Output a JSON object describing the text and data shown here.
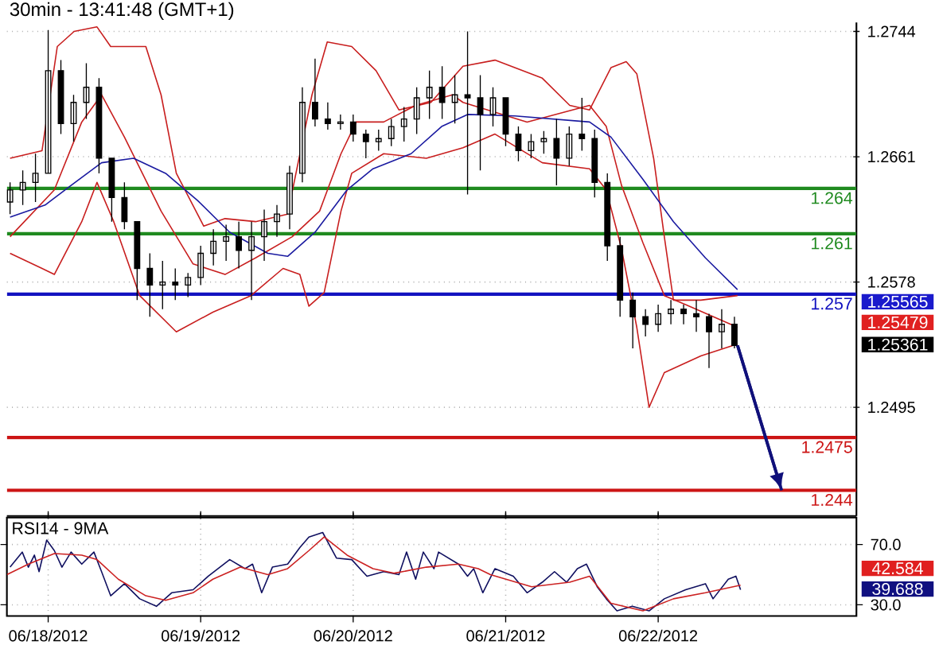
{
  "chart_data": [
    {
      "type": "candlestick",
      "title": "30min - 13:41:48 (GMT+1)",
      "color": "#000000",
      "x": [
        "2012-06-17T18:00",
        "2012-06-17T20:00",
        "2012-06-17T22:00",
        "2012-06-18T00:00",
        "2012-06-18T02:00",
        "2012-06-18T04:00",
        "2012-06-18T06:00",
        "2012-06-18T08:00",
        "2012-06-18T10:00",
        "2012-06-18T12:00",
        "2012-06-18T14:00",
        "2012-06-18T16:00",
        "2012-06-18T18:00",
        "2012-06-18T20:00",
        "2012-06-18T22:00",
        "2012-06-19T00:00",
        "2012-06-19T02:00",
        "2012-06-19T04:00",
        "2012-06-19T06:00",
        "2012-06-19T08:00",
        "2012-06-19T10:00",
        "2012-06-19T12:00",
        "2012-06-19T14:00",
        "2012-06-19T16:00",
        "2012-06-19T18:00",
        "2012-06-19T20:00",
        "2012-06-19T22:00",
        "2012-06-20T00:00",
        "2012-06-20T02:00",
        "2012-06-20T04:00",
        "2012-06-20T06:00",
        "2012-06-20T08:00",
        "2012-06-20T10:00",
        "2012-06-20T12:00",
        "2012-06-20T14:00",
        "2012-06-20T16:00",
        "2012-06-20T18:00",
        "2012-06-20T20:00",
        "2012-06-20T22:00",
        "2012-06-21T00:00",
        "2012-06-21T02:00",
        "2012-06-21T04:00",
        "2012-06-21T06:00",
        "2012-06-21T08:00",
        "2012-06-21T10:00",
        "2012-06-21T12:00",
        "2012-06-21T14:00",
        "2012-06-21T16:00",
        "2012-06-21T18:00",
        "2012-06-21T20:00",
        "2012-06-21T22:00",
        "2012-06-22T00:00",
        "2012-06-22T02:00",
        "2012-06-22T04:00",
        "2012-06-22T06:00",
        "2012-06-22T08:00",
        "2012-06-22T10:00",
        "2012-06-22T12:00"
      ],
      "ohlc": [
        [
          1.2631,
          1.2644,
          1.2623,
          1.2639
        ],
        [
          1.2639,
          1.2652,
          1.2629,
          1.2644
        ],
        [
          1.2644,
          1.2663,
          1.2631,
          1.265
        ],
        [
          1.265,
          1.2745,
          1.265,
          1.2718
        ],
        [
          1.2718,
          1.2725,
          1.2676,
          1.2683
        ],
        [
          1.2683,
          1.2702,
          1.2671,
          1.2697
        ],
        [
          1.2697,
          1.2723,
          1.2686,
          1.2707
        ],
        [
          1.2707,
          1.2713,
          1.265,
          1.266
        ],
        [
          1.266,
          1.266,
          1.2618,
          1.2634
        ],
        [
          1.2634,
          1.2644,
          1.2613,
          1.2618
        ],
        [
          1.2618,
          1.2618,
          1.2566,
          1.2587
        ],
        [
          1.2587,
          1.2597,
          1.2555,
          1.2576
        ],
        [
          1.2576,
          1.2592,
          1.256,
          1.2578
        ],
        [
          1.2578,
          1.2587,
          1.2566,
          1.2576
        ],
        [
          1.2576,
          1.2584,
          1.2568,
          1.2581
        ],
        [
          1.2581,
          1.2602,
          1.2576,
          1.2597
        ],
        [
          1.2597,
          1.2613,
          1.2589,
          1.2605
        ],
        [
          1.2605,
          1.2616,
          1.2592,
          1.2608
        ],
        [
          1.2608,
          1.2618,
          1.2587,
          1.2599
        ],
        [
          1.2599,
          1.2618,
          1.2566,
          1.2608
        ],
        [
          1.2608,
          1.2626,
          1.2592,
          1.2618
        ],
        [
          1.2618,
          1.2629,
          1.2608,
          1.2623
        ],
        [
          1.2623,
          1.2655,
          1.2613,
          1.265
        ],
        [
          1.265,
          1.2707,
          1.2644,
          1.2697
        ],
        [
          1.2697,
          1.2726,
          1.2681,
          1.2686
        ],
        [
          1.2686,
          1.2697,
          1.2679,
          1.2683
        ],
        [
          1.2683,
          1.2689,
          1.2679,
          1.2684
        ],
        [
          1.2684,
          1.2689,
          1.2671,
          1.2676
        ],
        [
          1.2676,
          1.2679,
          1.266,
          1.2671
        ],
        [
          1.2671,
          1.2679,
          1.2665,
          1.2673
        ],
        [
          1.2673,
          1.2686,
          1.2668,
          1.2681
        ],
        [
          1.2681,
          1.2694,
          1.2671,
          1.2686
        ],
        [
          1.2686,
          1.2707,
          1.2676,
          1.27
        ],
        [
          1.27,
          1.2718,
          1.2686,
          1.2707
        ],
        [
          1.2707,
          1.2721,
          1.2686,
          1.2697
        ],
        [
          1.2697,
          1.2715,
          1.2683,
          1.2702
        ],
        [
          1.2702,
          1.2744,
          1.2636,
          1.27
        ],
        [
          1.27,
          1.2715,
          1.2652,
          1.2689
        ],
        [
          1.2689,
          1.2707,
          1.2681,
          1.27
        ],
        [
          1.27,
          1.27,
          1.2668,
          1.2676
        ],
        [
          1.2676,
          1.2681,
          1.2658,
          1.2665
        ],
        [
          1.2665,
          1.2676,
          1.266,
          1.2671
        ],
        [
          1.2671,
          1.2678,
          1.2663,
          1.2673
        ],
        [
          1.2673,
          1.2686,
          1.2642,
          1.266
        ],
        [
          1.266,
          1.2681,
          1.2655,
          1.2676
        ],
        [
          1.2676,
          1.27,
          1.2665,
          1.2673
        ],
        [
          1.2673,
          1.2679,
          1.2634,
          1.2644
        ],
        [
          1.2644,
          1.265,
          1.2592,
          1.2602
        ],
        [
          1.2602,
          1.2608,
          1.2555,
          1.2566
        ],
        [
          1.2566,
          1.2571,
          1.2534,
          1.2555
        ],
        [
          1.2555,
          1.256,
          1.2542,
          1.255
        ],
        [
          1.255,
          1.2563,
          1.2545,
          1.2557
        ],
        [
          1.2557,
          1.2566,
          1.255,
          1.256
        ],
        [
          1.256,
          1.2563,
          1.255,
          1.2557
        ],
        [
          1.2557,
          1.2566,
          1.2545,
          1.2555
        ],
        [
          1.2555,
          1.2557,
          1.2521,
          1.2545
        ],
        [
          1.2545,
          1.256,
          1.2534,
          1.255
        ],
        [
          1.255,
          1.2555,
          1.2534,
          1.2536
        ]
      ],
      "series": [
        {
          "type": "line",
          "color": "#c81e1e",
          "x": [
            "2012-06-17T18:00",
            "2012-06-17T23:02",
            "2012-06-18T01:26",
            "2012-06-18T04:05",
            "2012-06-18T07:41",
            "2012-06-18T09:50",
            "2012-06-18T15:22",
            "2012-06-18T17:46",
            "2012-06-18T20:10",
            "2012-06-19T00:29",
            "2012-06-19T03:50",
            "2012-06-19T08:38",
            "2012-06-19T13:41",
            "2012-06-19T17:31",
            "2012-06-19T19:55",
            "2012-06-19T23:46",
            "2012-06-20T03:36",
            "2012-06-20T07:12",
            "2012-06-20T12:14",
            "2012-06-20T17:17",
            "2012-06-20T22:19",
            "2012-06-21T05:46",
            "2012-06-21T10:05",
            "2012-06-21T13:12",
            "2012-06-21T16:34",
            "2012-06-21T18:58",
            "2012-06-21T20:38",
            "2012-06-21T23:17",
            "2012-06-22T00:58",
            "2012-06-22T02:24",
            "2012-06-22T06:43",
            "2012-06-22T12:29"
          ],
          "values": [
            1.266,
            1.2665,
            1.2734,
            1.2744,
            1.2747,
            1.2734,
            1.2734,
            1.2702,
            1.265,
            1.2615,
            1.262,
            1.2618,
            1.2623,
            1.2702,
            1.2737,
            1.2734,
            1.2718,
            1.2692,
            1.2697,
            1.2721,
            1.2725,
            1.2713,
            1.2695,
            1.2692,
            1.272,
            1.2724,
            1.2716,
            1.266,
            1.2608,
            1.2566,
            1.2566,
            1.2569
          ]
        },
        {
          "type": "line",
          "color": "#c81e1e",
          "x": [
            "2012-06-17T18:00",
            "2012-06-18T00:58",
            "2012-06-18T05:17",
            "2012-06-18T08:24",
            "2012-06-18T12:00",
            "2012-06-18T17:46",
            "2012-06-18T22:48",
            "2012-06-19T03:50",
            "2012-06-19T08:38",
            "2012-06-19T14:24",
            "2012-06-19T18:43",
            "2012-06-19T22:05",
            "2012-06-20T00:29",
            "2012-06-20T04:48",
            "2012-06-20T09:50",
            "2012-06-20T15:36",
            "2012-06-20T17:17",
            "2012-06-21T03:22",
            "2012-06-21T13:12",
            "2012-06-21T15:50",
            "2012-06-21T18:14",
            "2012-06-21T21:36",
            "2012-06-22T00:58",
            "2012-06-22T04:19",
            "2012-06-22T12:29"
          ],
          "values": [
            1.2608,
            1.2639,
            1.2684,
            1.2702,
            1.2674,
            1.2625,
            1.259,
            1.2583,
            1.2594,
            1.2608,
            1.2625,
            1.2663,
            1.2684,
            1.2684,
            1.2695,
            1.2702,
            1.2697,
            1.2684,
            1.2695,
            1.2681,
            1.2642,
            1.2604,
            1.2569,
            1.2563,
            1.2548
          ]
        },
        {
          "type": "line",
          "color": "#c81e1e",
          "x": [
            "2012-06-17T18:00",
            "2012-06-17T23:02",
            "2012-06-18T00:58",
            "2012-06-18T05:17",
            "2012-06-18T07:41",
            "2012-06-18T10:19",
            "2012-06-18T14:24",
            "2012-06-18T20:10",
            "2012-06-19T01:55",
            "2012-06-19T07:55",
            "2012-06-19T12:58",
            "2012-06-19T15:36",
            "2012-06-19T17:02",
            "2012-06-19T19:26",
            "2012-06-19T22:05",
            "2012-06-19T23:46",
            "2012-06-20T04:48",
            "2012-06-20T11:31",
            "2012-06-20T17:17",
            "2012-06-20T22:19",
            "2012-06-21T05:46",
            "2012-06-21T13:12",
            "2012-06-21T15:50",
            "2012-06-21T18:14",
            "2012-06-21T20:38",
            "2012-06-21T22:34",
            "2012-06-22T00:58",
            "2012-06-22T06:43",
            "2012-06-22T12:29"
          ],
          "values": [
            1.2597,
            1.2587,
            1.2583,
            1.2618,
            1.2644,
            1.2618,
            1.2569,
            1.2545,
            1.2558,
            1.2569,
            1.2587,
            1.2583,
            1.2562,
            1.2571,
            1.2625,
            1.265,
            1.2663,
            1.266,
            1.2667,
            1.2676,
            1.2657,
            1.2653,
            1.2639,
            1.26,
            1.2548,
            1.2495,
            1.2518,
            1.2529,
            1.2537
          ]
        },
        {
          "type": "line",
          "color": "#1a1aa0",
          "x": [
            "2012-06-17T18:00",
            "2012-06-17T23:31",
            "2012-06-18T03:36",
            "2012-06-18T08:24",
            "2012-06-18T13:26",
            "2012-06-18T18:29",
            "2012-06-18T23:31",
            "2012-06-19T04:34",
            "2012-06-19T10:34",
            "2012-06-19T13:41",
            "2012-06-19T18:00",
            "2012-06-19T23:02",
            "2012-06-20T03:07",
            "2012-06-20T09:07",
            "2012-06-20T13:55",
            "2012-06-20T18:00",
            "2012-06-21T01:26",
            "2012-06-21T13:12",
            "2012-06-21T16:34",
            "2012-06-21T21:36",
            "2012-06-22T02:24",
            "2012-06-22T07:26",
            "2012-06-22T12:29"
          ],
          "values": [
            1.2621,
            1.2629,
            1.2642,
            1.2657,
            1.266,
            1.265,
            1.2632,
            1.2611,
            1.2597,
            1.2595,
            1.2611,
            1.2639,
            1.2653,
            1.2663,
            1.2681,
            1.2689,
            1.2688,
            1.2684,
            1.2674,
            1.2646,
            1.2618,
            1.2594,
            1.2573
          ]
        },
        {
          "type": "line",
          "color": "#10107a",
          "x": [
            "2012-06-22T12:29",
            "2012-06-22T19:26"
          ],
          "values": [
            1.2536,
            1.244
          ]
        }
      ],
      "ref_lines": [
        {
          "axis": "y",
          "value": 1.264,
          "label": "1.264",
          "color": "#1f8a1f"
        },
        {
          "axis": "y",
          "value": 1.261,
          "label": "1.261",
          "color": "#1f8a1f"
        },
        {
          "axis": "y",
          "value": 1.257,
          "label": "1.257",
          "color": "#1212c0"
        },
        {
          "axis": "y",
          "value": 1.2475,
          "label": "1.2475",
          "color": "#cc1414"
        },
        {
          "axis": "y",
          "value": 1.244,
          "label": "1.244",
          "color": "#cc1414"
        }
      ],
      "annotations": [
        "1.25565",
        "1.25479",
        "1.25361"
      ],
      "xlim": [
        "2012-06-17T17:30",
        "2012-06-23T07:12"
      ],
      "ylim": [
        1.2423,
        1.275
      ],
      "yticks": [
        1.2744,
        1.2661,
        1.2578,
        1.2495
      ],
      "xticks": [
        {
          "value": "2012-06-18",
          "label": null
        },
        {
          "value": "2012-06-19",
          "label": null
        },
        {
          "value": "2012-06-20",
          "label": null
        },
        {
          "value": "2012-06-21",
          "label": null
        },
        {
          "value": "2012-06-22",
          "label": null
        }
      ],
      "grid": "y",
      "tick_labels": "y"
    },
    {
      "type": "line",
      "title": "RSI14 - 9MA",
      "series": [
        {
          "color": "#101060",
          "x": [
            "2012-06-17T18:00",
            "2012-06-17T19:55",
            "2012-06-17T20:53",
            "2012-06-17T21:50",
            "2012-06-17T22:34",
            "2012-06-17T23:46",
            "2012-06-18T00:58",
            "2012-06-18T02:10",
            "2012-06-18T03:36",
            "2012-06-18T05:17",
            "2012-06-18T07:12",
            "2012-06-18T08:24",
            "2012-06-18T09:50",
            "2012-06-18T12:00",
            "2012-06-18T14:24",
            "2012-06-18T17:02",
            "2012-06-18T19:26",
            "2012-06-18T22:48",
            "2012-06-19T01:12",
            "2012-06-19T04:34",
            "2012-06-19T06:58",
            "2012-06-19T08:10",
            "2012-06-19T09:36",
            "2012-06-19T11:17",
            "2012-06-19T13:41",
            "2012-06-19T15:36",
            "2012-06-19T17:02",
            "2012-06-19T19:12",
            "2012-06-19T21:22",
            "2012-06-19T23:46",
            "2012-06-20T02:10",
            "2012-06-20T04:48",
            "2012-06-20T07:12",
            "2012-06-20T08:24",
            "2012-06-20T09:50",
            "2012-06-20T11:02",
            "2012-06-20T12:43",
            "2012-06-20T13:26",
            "2012-06-20T16:34",
            "2012-06-20T18:00",
            "2012-06-20T18:58",
            "2012-06-20T20:24",
            "2012-06-20T22:19",
            "2012-06-21T01:12",
            "2012-06-21T03:22",
            "2012-06-21T05:46",
            "2012-06-21T07:41",
            "2012-06-21T09:36",
            "2012-06-21T11:17",
            "2012-06-21T12:43",
            "2012-06-21T14:24",
            "2012-06-21T15:50",
            "2012-06-21T17:31",
            "2012-06-21T19:55",
            "2012-06-21T22:34",
            "2012-06-22T00:58",
            "2012-06-22T04:19",
            "2012-06-22T07:26",
            "2012-06-22T08:38",
            "2012-06-22T11:02",
            "2012-06-22T12:14",
            "2012-06-22T12:58"
          ],
          "values": [
            55,
            65,
            55,
            63,
            52,
            73,
            66,
            55,
            65,
            57,
            65,
            52,
            36,
            44,
            34,
            29,
            38,
            40,
            49,
            60,
            54,
            57,
            38,
            55,
            57,
            68,
            75,
            78,
            61,
            60,
            49,
            52,
            50,
            65,
            47,
            65,
            54,
            65,
            57,
            49,
            54,
            38,
            54,
            49,
            38,
            45,
            52,
            45,
            54,
            57,
            42,
            34,
            26,
            29,
            26,
            34,
            40,
            44,
            34,
            47,
            49,
            40
          ]
        },
        {
          "color": "#cc2222",
          "x": [
            "2012-06-17T17:30",
            "2012-06-17T20:53",
            "2012-06-18T00:58",
            "2012-06-18T05:17",
            "2012-06-18T07:41",
            "2012-06-18T11:02",
            "2012-06-18T15:22",
            "2012-06-18T18:29",
            "2012-06-18T22:48",
            "2012-06-19T01:55",
            "2012-06-19T06:14",
            "2012-06-19T10:34",
            "2012-06-19T13:41",
            "2012-06-19T17:02",
            "2012-06-19T19:26",
            "2012-06-19T23:02",
            "2012-06-20T03:07",
            "2012-06-20T06:29",
            "2012-06-20T11:31",
            "2012-06-20T16:34",
            "2012-06-20T19:41",
            "2012-06-20T21:36",
            "2012-06-21T04:05",
            "2012-06-21T10:05",
            "2012-06-21T13:12",
            "2012-06-21T16:34",
            "2012-06-21T21:36",
            "2012-06-22T02:24",
            "2012-06-22T07:26",
            "2012-06-22T12:58"
          ],
          "values": [
            50,
            57,
            64,
            63,
            60,
            47,
            36,
            33,
            38,
            47,
            55,
            50,
            54,
            66,
            75,
            63,
            54,
            51,
            55,
            57,
            54,
            50,
            42,
            45,
            49,
            31,
            26,
            34,
            38,
            43
          ]
        }
      ],
      "annotations": [
        "42.584",
        "39.688"
      ],
      "xlim": [
        "2012-06-17T17:30",
        "2012-06-23T07:12"
      ],
      "ylim": [
        22.6,
        87.9
      ],
      "xticks": [
        {
          "value": "2012-06-18",
          "label": "06/18/2012"
        },
        {
          "value": "2012-06-19",
          "label": "06/19/2012"
        },
        {
          "value": "2012-06-20",
          "label": "06/20/2012"
        },
        {
          "value": "2012-06-21",
          "label": "06/21/2012"
        },
        {
          "value": "2012-06-22",
          "label": "06/22/2012"
        }
      ],
      "yticks": [
        {
          "value": 70,
          "label": "70.0"
        },
        {
          "value": 30,
          "label": "30.0"
        }
      ],
      "grid": true
    }
  ]
}
